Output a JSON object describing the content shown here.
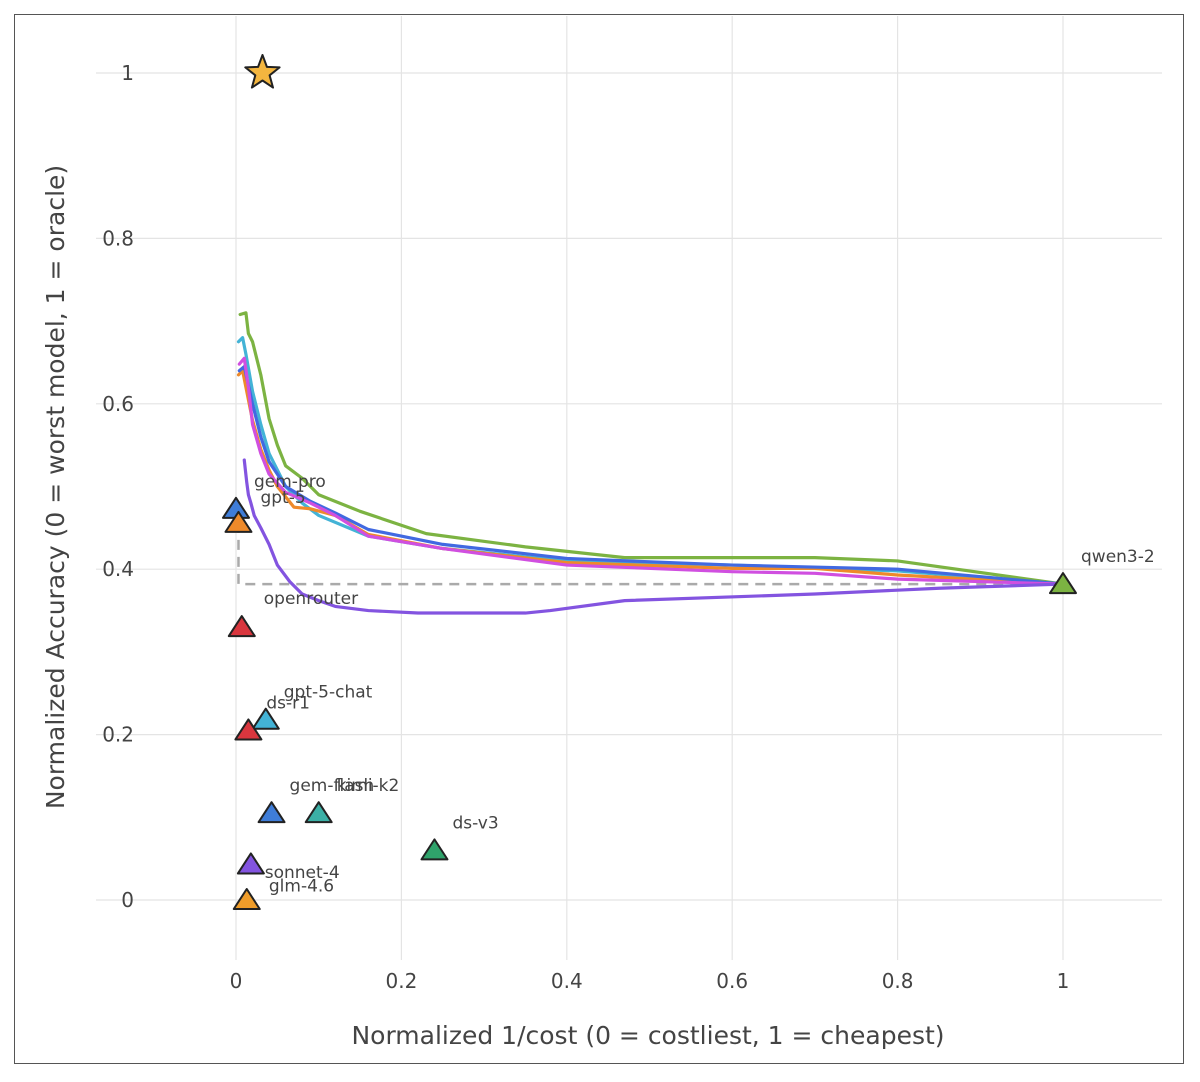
{
  "chart_data": {
    "type": "scatter",
    "title": "",
    "xlabel": "Normalized 1/cost (0 = costliest, 1 = cheapest)",
    "ylabel": "Normalized Accuracy (0 = worst model, 1 = oracle)",
    "xlim": [
      -0.17,
      1.12
    ],
    "ylim": [
      -0.07,
      1.07
    ],
    "xticks": [
      0,
      0.2,
      0.4,
      0.6,
      0.8,
      1
    ],
    "xtick_labels": [
      "0",
      "0.2",
      "0.4",
      "0.6",
      "0.8",
      "1"
    ],
    "yticks": [
      0,
      0.2,
      0.4,
      0.6,
      0.8,
      1
    ],
    "ytick_labels": [
      "0",
      "0.2",
      "0.4",
      "0.6",
      "0.8",
      "1"
    ],
    "grid": true,
    "oracle": {
      "x": 0.032,
      "y": 1.0,
      "color": "#f4b63f"
    },
    "models": [
      {
        "name": "gem-pro",
        "x": 0.0,
        "y": 0.473,
        "color": "#3f7dd8"
      },
      {
        "name": "gpt-5",
        "x": 0.003,
        "y": 0.456,
        "color": "#ee8a2a"
      },
      {
        "name": "openrouter",
        "x": 0.007,
        "y": 0.33,
        "color": "#d9363e"
      },
      {
        "name": "gpt-5-chat",
        "x": 0.036,
        "y": 0.218,
        "color": "#43b3d6"
      },
      {
        "name": "ds-r1",
        "x": 0.015,
        "y": 0.205,
        "color": "#d9363e"
      },
      {
        "name": "gem-flash",
        "x": 0.043,
        "y": 0.105,
        "color": "#3f7dd8"
      },
      {
        "name": "kimi-k2",
        "x": 0.1,
        "y": 0.105,
        "color": "#3bb0a6"
      },
      {
        "name": "ds-v3",
        "x": 0.24,
        "y": 0.06,
        "color": "#2fa36b"
      },
      {
        "name": "glm-4.6",
        "x": 0.018,
        "y": 0.043,
        "color": "#8354e0"
      },
      {
        "name": "sonnet-4",
        "x": 0.013,
        "y": 0.0,
        "color": "#f09d2a"
      },
      {
        "name": "qwen3-2",
        "x": 1.0,
        "y": 0.382,
        "color": "#7cb342"
      }
    ],
    "baseline": {
      "color": "#aaaaaa",
      "x": [
        0.003,
        0.003,
        1.0
      ],
      "y": [
        0.456,
        0.382,
        0.382
      ]
    },
    "series": [
      {
        "name": "green",
        "color": "#7cb342",
        "x": [
          0.005,
          0.012,
          0.015,
          0.02,
          0.03,
          0.04,
          0.05,
          0.06,
          0.08,
          0.1,
          0.15,
          0.23,
          0.35,
          0.47,
          0.7,
          0.8,
          1.0
        ],
        "y": [
          0.708,
          0.71,
          0.685,
          0.675,
          0.635,
          0.582,
          0.55,
          0.525,
          0.51,
          0.49,
          0.47,
          0.443,
          0.427,
          0.414,
          0.414,
          0.41,
          0.382
        ]
      },
      {
        "name": "cyan",
        "color": "#43b3d6",
        "x": [
          0.003,
          0.008,
          0.012,
          0.02,
          0.03,
          0.04,
          0.06,
          0.08,
          0.1,
          0.16,
          0.25,
          0.4,
          0.6,
          0.8,
          1.0
        ],
        "y": [
          0.675,
          0.68,
          0.66,
          0.615,
          0.575,
          0.54,
          0.5,
          0.48,
          0.465,
          0.44,
          0.425,
          0.41,
          0.405,
          0.398,
          0.382
        ]
      },
      {
        "name": "orange",
        "color": "#ee8a2a",
        "x": [
          0.003,
          0.008,
          0.012,
          0.02,
          0.03,
          0.04,
          0.05,
          0.07,
          0.09,
          0.12,
          0.16,
          0.25,
          0.4,
          0.6,
          0.7,
          0.8,
          1.0
        ],
        "y": [
          0.635,
          0.64,
          0.62,
          0.58,
          0.545,
          0.52,
          0.5,
          0.475,
          0.473,
          0.465,
          0.442,
          0.425,
          0.408,
          0.401,
          0.401,
          0.393,
          0.382
        ]
      },
      {
        "name": "blue",
        "color": "#4169e1",
        "x": [
          0.004,
          0.01,
          0.02,
          0.03,
          0.04,
          0.06,
          0.09,
          0.12,
          0.16,
          0.25,
          0.4,
          0.6,
          0.8,
          1.0
        ],
        "y": [
          0.64,
          0.645,
          0.6,
          0.56,
          0.53,
          0.5,
          0.482,
          0.468,
          0.448,
          0.43,
          0.413,
          0.405,
          0.4,
          0.382
        ]
      },
      {
        "name": "magenta",
        "color": "#d04fe0",
        "x": [
          0.004,
          0.01,
          0.015,
          0.02,
          0.03,
          0.04,
          0.06,
          0.09,
          0.12,
          0.16,
          0.25,
          0.4,
          0.6,
          0.7,
          0.8,
          1.0
        ],
        "y": [
          0.648,
          0.655,
          0.62,
          0.575,
          0.54,
          0.515,
          0.493,
          0.48,
          0.465,
          0.44,
          0.425,
          0.405,
          0.397,
          0.395,
          0.388,
          0.382
        ]
      },
      {
        "name": "purple",
        "color": "#8354e0",
        "x": [
          0.01,
          0.013,
          0.015,
          0.018,
          0.022,
          0.03,
          0.04,
          0.05,
          0.065,
          0.08,
          0.1,
          0.12,
          0.16,
          0.22,
          0.28,
          0.35,
          0.38,
          0.47,
          0.7,
          0.85,
          1.0
        ],
        "y": [
          0.532,
          0.505,
          0.49,
          0.48,
          0.465,
          0.45,
          0.43,
          0.405,
          0.385,
          0.37,
          0.362,
          0.355,
          0.35,
          0.347,
          0.347,
          0.347,
          0.35,
          0.362,
          0.37,
          0.377,
          0.382
        ]
      }
    ]
  }
}
